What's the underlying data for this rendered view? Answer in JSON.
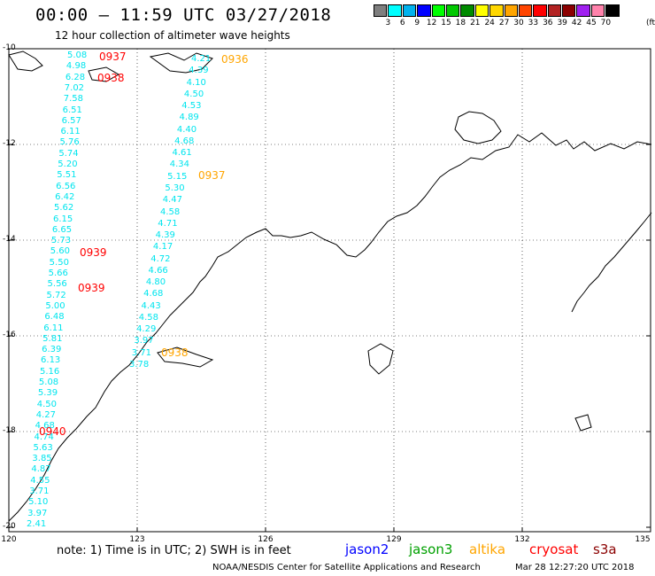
{
  "header": {
    "title": "00:00 – 11:59 UTC 03/27/2018",
    "subtitle": "12 hour collection of altimeter wave heights"
  },
  "color_scale": {
    "unit": "(ft)",
    "labels": [
      "3",
      "6",
      "9",
      "12",
      "15",
      "18",
      "21",
      "24",
      "27",
      "30",
      "33",
      "36",
      "39",
      "42",
      "45",
      "70"
    ],
    "colors": [
      "#7f7f7f",
      "#00ffff",
      "#00b2ee",
      "#0000ff",
      "#00ff00",
      "#00c800",
      "#008b00",
      "#ffff00",
      "#ffd700",
      "#ffa500",
      "#ff4500",
      "#ff0000",
      "#b22222",
      "#8b0000",
      "#a020f0",
      "#ff82ab",
      "#000000"
    ]
  },
  "axes": {
    "lat_labels": [
      "-10",
      "-12",
      "-14",
      "-16",
      "-18",
      "-20"
    ],
    "lon_labels": [
      "120",
      "123",
      "126",
      "129",
      "132",
      "135"
    ]
  },
  "tracks": [
    {
      "name": "cryosat",
      "color": "#00e5ee",
      "values": [
        "5.08",
        "4.98",
        "6.28",
        "7.02",
        "7.58",
        "6.51",
        "6.57",
        "6.11",
        "5.76",
        "5.74",
        "5.20",
        "5.51",
        "6.56",
        "6.42",
        "5.62",
        "6.15",
        "6.65",
        "5.73",
        "5.60",
        "5.50",
        "5.66",
        "5.56",
        "5.72",
        "5.00",
        "6.48",
        "6.11",
        "5.81",
        "6.39",
        "6.13",
        "5.16",
        "5.08",
        "5.39",
        "4.50",
        "4.27",
        "4.68",
        "4.74",
        "5.63",
        "3.85",
        "4.87",
        "4.55",
        "3.71",
        "5.10",
        "3.97",
        "2.41"
      ]
    },
    {
      "name": "altika",
      "color": "#00e5ee",
      "values": [
        "4.21",
        "4.39",
        "4.10",
        "4.50",
        "4.53",
        "4.89",
        "4.40",
        "4.68",
        "4.61",
        "4.34",
        "5.15",
        "5.30",
        "4.47",
        "4.58",
        "4.71",
        "4.39",
        "4.17",
        "4.72",
        "4.66",
        "4.80",
        "4.68",
        "4.43",
        "4.58",
        "4.29",
        "3.97",
        "3.71",
        "3.78"
      ]
    }
  ],
  "time_labels": [
    {
      "text": "0937",
      "color": "#ff0000"
    },
    {
      "text": "0938",
      "color": "#ff0000"
    },
    {
      "text": "0939",
      "color": "#ff0000"
    },
    {
      "text": "0939",
      "color": "#ff0000"
    },
    {
      "text": "0940",
      "color": "#ff0000"
    },
    {
      "text": "0936",
      "color": "#ffa500"
    },
    {
      "text": "0937",
      "color": "#ffa500"
    },
    {
      "text": "0938",
      "color": "#ffa500"
    }
  ],
  "footer": {
    "note": "note:  1) Time is in UTC;  2) SWH is in feet",
    "satellites": [
      {
        "name": "jason2",
        "color": "#0000ff"
      },
      {
        "name": "jason3",
        "color": "#00a000"
      },
      {
        "name": "altika",
        "color": "#ffa500"
      },
      {
        "name": "cryosat",
        "color": "#ff0000"
      },
      {
        "name": "s3a",
        "color": "#8b0000"
      }
    ],
    "credit": "NOAA/NESDIS Center for Satellite Applications and Research",
    "timestamp": "Mar 28 12:27:20 UTC 2018"
  }
}
